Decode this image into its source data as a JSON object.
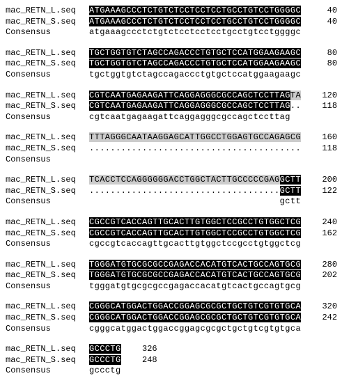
{
  "labels": {
    "seqL": "mac_RETN_L.seq",
    "seqS": "mac_RETN_S.seq",
    "cons": "Consensus"
  },
  "blocks": [
    {
      "rows": [
        {
          "label": "seqL",
          "runs": [
            {
              "t": "ATGAAAGCCCTCTGTCTCCTCCTCCTGCCTGTCCTGGGGC",
              "s": "hl"
            }
          ],
          "pos": "40"
        },
        {
          "label": "seqS",
          "runs": [
            {
              "t": "ATGAAAGCCCTCTGTCTCCTCCTCCTGCCTGTCCTGGGGC",
              "s": "hl"
            }
          ],
          "pos": "40"
        },
        {
          "label": "cons",
          "runs": [
            {
              "t": "atgaaagccctctgtctcctcctcctgcctgtcctggggc",
              "s": ""
            }
          ],
          "pos": ""
        }
      ]
    },
    {
      "rows": [
        {
          "label": "seqL",
          "runs": [
            {
              "t": "TGCTGGTGTCTAGCCAGACCCTGTGCTCCATGGAAGAAGC",
              "s": "hl"
            }
          ],
          "pos": "80"
        },
        {
          "label": "seqS",
          "runs": [
            {
              "t": "TGCTGGTGTCTAGCCAGACCCTGTGCTCCATGGAAGAAGC",
              "s": "hl"
            }
          ],
          "pos": "80"
        },
        {
          "label": "cons",
          "runs": [
            {
              "t": "tgctggtgtctagccagaccctgtgctccatggaagaagc",
              "s": ""
            }
          ],
          "pos": ""
        }
      ]
    },
    {
      "rows": [
        {
          "label": "seqL",
          "runs": [
            {
              "t": "CGTCAATGAGAAGATTCAGGAGGGCGCCAGCTCCTTAG",
              "s": "hl"
            },
            {
              "t": "TA",
              "s": "gr"
            }
          ],
          "pos": "120"
        },
        {
          "label": "seqS",
          "runs": [
            {
              "t": "CGTCAATGAGAAGATTCAGGAGGGCGCCAGCTCCTTAG",
              "s": "hl"
            },
            {
              "t": "..",
              "s": ""
            }
          ],
          "pos": "118"
        },
        {
          "label": "cons",
          "runs": [
            {
              "t": "cgtcaatgagaagattcaggagggcgccagctccttag",
              "s": ""
            }
          ],
          "pos": ""
        }
      ]
    },
    {
      "rows": [
        {
          "label": "seqL",
          "runs": [
            {
              "t": "TTTAGGGCAATAAGGAGCATTGGCCTGGAGTGCCAGAGCG",
              "s": "gr"
            }
          ],
          "pos": "160"
        },
        {
          "label": "seqS",
          "runs": [
            {
              "t": "........................................",
              "s": ""
            }
          ],
          "pos": "118"
        },
        {
          "label": "cons",
          "runs": [
            {
              "t": "",
              "s": ""
            }
          ],
          "pos": ""
        }
      ]
    },
    {
      "rows": [
        {
          "label": "seqL",
          "runs": [
            {
              "t": "TCACCTCCAGGGGGGACCTGGCTACTTGCCCCCGAG",
              "s": "gr"
            },
            {
              "t": "GCTT",
              "s": "hl"
            }
          ],
          "pos": "200"
        },
        {
          "label": "seqS",
          "runs": [
            {
              "t": "....................................",
              "s": ""
            },
            {
              "t": "GCTT",
              "s": "hl"
            }
          ],
          "pos": "122"
        },
        {
          "label": "cons",
          "runs": [
            {
              "t": "                                    gctt",
              "s": ""
            }
          ],
          "pos": ""
        }
      ]
    },
    {
      "rows": [
        {
          "label": "seqL",
          "runs": [
            {
              "t": "CGCCGTCACCAGTTGCACTTGTGGCTCCGCCTGTGGCTCG",
              "s": "hl"
            }
          ],
          "pos": "240"
        },
        {
          "label": "seqS",
          "runs": [
            {
              "t": "CGCCGTCACCAGTTGCACTTGTGGCTCCGCCTGTGGCTCG",
              "s": "hl"
            }
          ],
          "pos": "162"
        },
        {
          "label": "cons",
          "runs": [
            {
              "t": "cgccgtcaccagttgcacttgtggctccgcctgtggctcg",
              "s": ""
            }
          ],
          "pos": ""
        }
      ]
    },
    {
      "rows": [
        {
          "label": "seqL",
          "runs": [
            {
              "t": "TGGGATGTGCGCGCCGAGACCACATGTCACTGCCAGTGCG",
              "s": "hl"
            }
          ],
          "pos": "280"
        },
        {
          "label": "seqS",
          "runs": [
            {
              "t": "TGGGATGTGCGCGCCGAGACCACATGTCACTGCCAGTGCG",
              "s": "hl"
            }
          ],
          "pos": "202"
        },
        {
          "label": "cons",
          "runs": [
            {
              "t": "tgggatgtgcgcgccgagaccacatgtcactgccagtgcg",
              "s": ""
            }
          ],
          "pos": ""
        }
      ]
    },
    {
      "rows": [
        {
          "label": "seqL",
          "runs": [
            {
              "t": "CGGGCATGGACTGGACCGGAGCGCGCTGCTGTCGTGTGCA",
              "s": "hl"
            }
          ],
          "pos": "320"
        },
        {
          "label": "seqS",
          "runs": [
            {
              "t": "CGGGCATGGACTGGACCGGAGCGCGCTGCTGTCGTGTGCA",
              "s": "hl"
            }
          ],
          "pos": "242"
        },
        {
          "label": "cons",
          "runs": [
            {
              "t": "cgggcatggactggaccggagcgcgctgctgtcgtgtgca",
              "s": ""
            }
          ],
          "pos": ""
        }
      ]
    },
    {
      "rows": [
        {
          "label": "seqL",
          "runs": [
            {
              "t": "GCCCTG",
              "s": "hl"
            }
          ],
          "pos": "326"
        },
        {
          "label": "seqS",
          "runs": [
            {
              "t": "GCCCTG",
              "s": "hl"
            }
          ],
          "pos": "248"
        },
        {
          "label": "cons",
          "runs": [
            {
              "t": "gccctg",
              "s": ""
            }
          ],
          "pos": ""
        }
      ]
    }
  ]
}
